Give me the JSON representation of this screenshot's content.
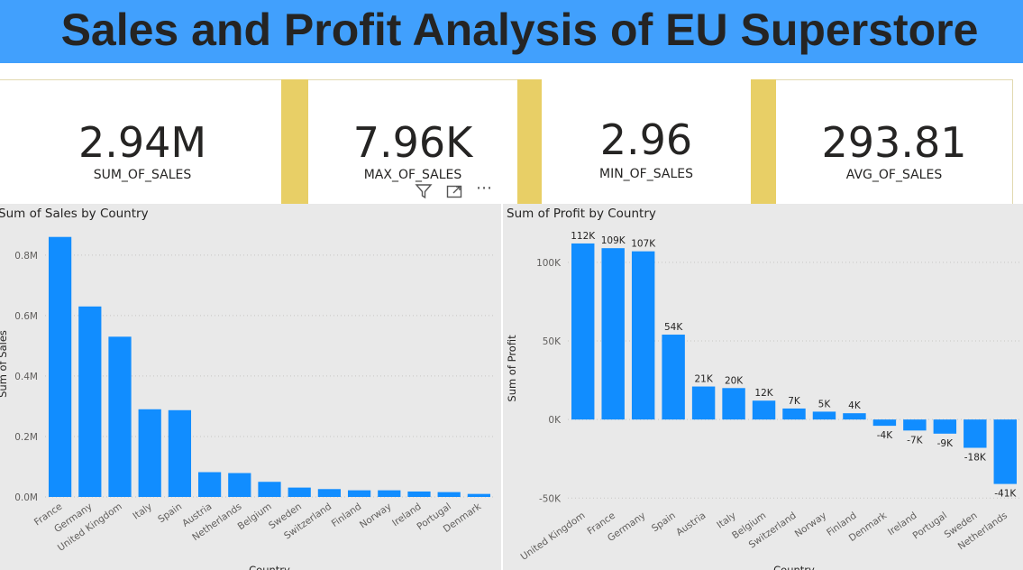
{
  "header": {
    "title": "Sales and Profit Analysis of EU Superstore"
  },
  "kpis": [
    {
      "value": "2.94M",
      "label": "SUM_OF_SALES"
    },
    {
      "value": "7.96K",
      "label": "MAX_OF_SALES"
    },
    {
      "value": "2.96",
      "label": "MIN_OF_SALES"
    },
    {
      "value": "293.81",
      "label": "AVG_OF_SALES"
    }
  ],
  "visual_header": {
    "filter_icon": "filter-icon",
    "focus_icon": "focus-mode-icon",
    "more_icon": "more-options-icon",
    "more_glyph": "⋯"
  },
  "colors": {
    "bar": "#118dff",
    "header": "#41a0fd",
    "accent": "#e8cf66",
    "panel": "#e9e9e9"
  },
  "chart_data": [
    {
      "type": "bar",
      "title": "Sum of Sales by Country",
      "xlabel": "Country",
      "ylabel": "Sum of Sales",
      "categories": [
        "France",
        "Germany",
        "United Kingdom",
        "Italy",
        "Spain",
        "Austria",
        "Netherlands",
        "Belgium",
        "Sweden",
        "Switzerland",
        "Finland",
        "Norway",
        "Ireland",
        "Portugal",
        "Denmark"
      ],
      "values": [
        860000,
        630000,
        530000,
        290000,
        287000,
        82000,
        79000,
        50000,
        31000,
        26000,
        22000,
        22000,
        18000,
        16000,
        10000
      ],
      "yticks": [
        0,
        200000,
        400000,
        600000,
        800000
      ],
      "ytick_labels": [
        "0.0M",
        "0.2M",
        "0.4M",
        "0.6M",
        "0.8M"
      ],
      "ylim": [
        0,
        880000
      ],
      "grid": true
    },
    {
      "type": "bar",
      "title": "Sum of Profit by Country",
      "xlabel": "Country",
      "ylabel": "Sum of Profit",
      "categories": [
        "United Kingdom",
        "France",
        "Germany",
        "Spain",
        "Austria",
        "Italy",
        "Belgium",
        "Switzerland",
        "Norway",
        "Finland",
        "Denmark",
        "Ireland",
        "Portugal",
        "Sweden",
        "Netherlands"
      ],
      "values": [
        112000,
        109000,
        107000,
        54000,
        21000,
        20000,
        12000,
        7000,
        5000,
        4000,
        -4000,
        -7000,
        -9000,
        -18000,
        -41000
      ],
      "data_labels": [
        "112K",
        "109K",
        "107K",
        "54K",
        "21K",
        "20K",
        "12K",
        "7K",
        "5K",
        "4K",
        "-4K",
        "-7K",
        "-9K",
        "-18K",
        "-41K"
      ],
      "yticks": [
        -50000,
        0,
        50000,
        100000
      ],
      "ytick_labels": [
        "-50K",
        "0K",
        "50K",
        "100K"
      ],
      "ylim": [
        -55000,
        120000
      ],
      "grid": true
    }
  ]
}
